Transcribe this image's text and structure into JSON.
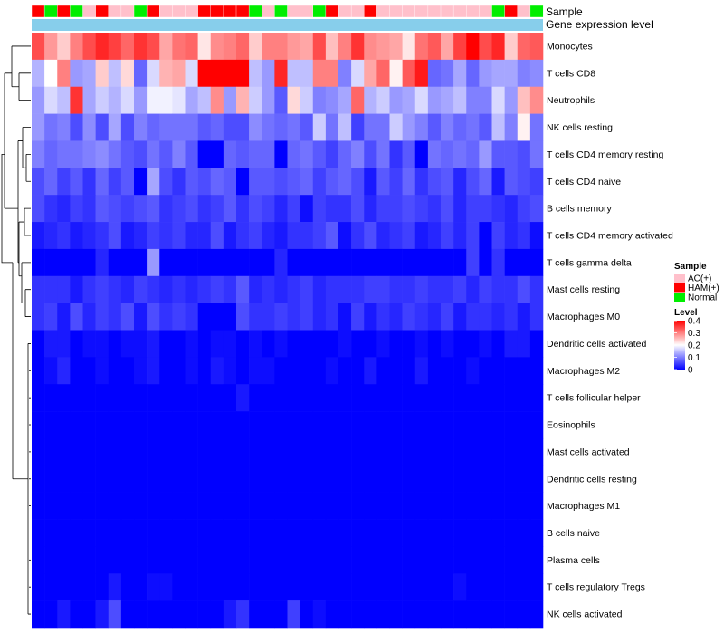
{
  "chart_data": {
    "type": "heatmap",
    "annotation_rows": [
      {
        "label": "Sample"
      },
      {
        "label": "Gene expression level"
      }
    ],
    "sample_groups": [
      "HAM(+)",
      "Normal",
      "HAM(+)",
      "Normal",
      "AC(+)",
      "HAM(+)",
      "AC(+)",
      "AC(+)",
      "Normal",
      "HAM(+)",
      "AC(+)",
      "AC(+)",
      "AC(+)",
      "HAM(+)",
      "HAM(+)",
      "HAM(+)",
      "HAM(+)",
      "Normal",
      "AC(+)",
      "Normal",
      "AC(+)",
      "AC(+)",
      "Normal",
      "HAM(+)",
      "AC(+)",
      "AC(+)",
      "HAM(+)",
      "AC(+)",
      "AC(+)",
      "AC(+)",
      "AC(+)",
      "AC(+)",
      "AC(+)",
      "AC(+)",
      "AC(+)",
      "AC(+)",
      "Normal",
      "HAM(+)",
      "AC(+)",
      "Normal"
    ],
    "rows": [
      {
        "name": "Monocytes",
        "values": [
          0.34,
          0.28,
          0.24,
          0.3,
          0.34,
          0.37,
          0.35,
          0.32,
          0.36,
          0.34,
          0.27,
          0.31,
          0.32,
          0.22,
          0.29,
          0.3,
          0.32,
          0.24,
          0.3,
          0.3,
          0.28,
          0.27,
          0.34,
          0.25,
          0.3,
          0.36,
          0.29,
          0.28,
          0.27,
          0.22,
          0.31,
          0.33,
          0.27,
          0.35,
          0.4,
          0.34,
          0.37,
          0.24,
          0.32,
          0.33
        ]
      },
      {
        "name": "T cells CD8",
        "values": [
          0.14,
          0.2,
          0.3,
          0.12,
          0.13,
          0.24,
          0.15,
          0.23,
          0.08,
          0.17,
          0.26,
          0.27,
          0.17,
          0.4,
          0.4,
          0.4,
          0.4,
          0.15,
          0.12,
          0.37,
          0.15,
          0.15,
          0.3,
          0.3,
          0.1,
          0.17,
          0.27,
          0.32,
          0.21,
          0.33,
          0.38,
          0.08,
          0.09,
          0.13,
          0.08,
          0.12,
          0.13,
          0.13,
          0.1,
          0.11
        ]
      },
      {
        "name": "Neutrophils",
        "values": [
          0.12,
          0.17,
          0.15,
          0.36,
          0.13,
          0.16,
          0.14,
          0.17,
          0.12,
          0.19,
          0.19,
          0.18,
          0.13,
          0.15,
          0.29,
          0.12,
          0.26,
          0.16,
          0.12,
          0.07,
          0.23,
          0.16,
          0.1,
          0.11,
          0.13,
          0.32,
          0.14,
          0.16,
          0.12,
          0.13,
          0.17,
          0.12,
          0.13,
          0.15,
          0.1,
          0.1,
          0.17,
          0.12,
          0.25,
          0.29
        ]
      },
      {
        "name": "NK cells resting",
        "values": [
          0.12,
          0.09,
          0.1,
          0.06,
          0.11,
          0.06,
          0.13,
          0.06,
          0.1,
          0.08,
          0.09,
          0.09,
          0.09,
          0.07,
          0.08,
          0.06,
          0.06,
          0.11,
          0.09,
          0.08,
          0.09,
          0.07,
          0.16,
          0.09,
          0.15,
          0.05,
          0.09,
          0.09,
          0.16,
          0.12,
          0.1,
          0.07,
          0.1,
          0.08,
          0.09,
          0.07,
          0.15,
          0.1,
          0.21,
          0.09
        ]
      },
      {
        "name": "T cells CD4 memory resting",
        "values": [
          0.1,
          0.08,
          0.09,
          0.09,
          0.1,
          0.11,
          0.09,
          0.07,
          0.06,
          0.09,
          0.07,
          0.1,
          0.07,
          0.0,
          0.0,
          0.08,
          0.07,
          0.08,
          0.08,
          0.0,
          0.08,
          0.09,
          0.07,
          0.05,
          0.08,
          0.1,
          0.06,
          0.09,
          0.04,
          0.07,
          0.0,
          0.09,
          0.08,
          0.09,
          0.08,
          0.12,
          0.07,
          0.07,
          0.06,
          0.09
        ]
      },
      {
        "name": "T cells CD4 naive",
        "values": [
          0.06,
          0.08,
          0.05,
          0.07,
          0.04,
          0.08,
          0.05,
          0.07,
          0.0,
          0.13,
          0.06,
          0.04,
          0.07,
          0.06,
          0.08,
          0.07,
          0.0,
          0.07,
          0.07,
          0.06,
          0.07,
          0.08,
          0.05,
          0.07,
          0.08,
          0.06,
          0.02,
          0.07,
          0.05,
          0.08,
          0.04,
          0.06,
          0.07,
          0.03,
          0.06,
          0.08,
          0.02,
          0.07,
          0.06,
          0.05
        ]
      },
      {
        "name": "B cells memory",
        "values": [
          0.06,
          0.04,
          0.03,
          0.05,
          0.04,
          0.07,
          0.06,
          0.05,
          0.06,
          0.07,
          0.04,
          0.05,
          0.06,
          0.04,
          0.05,
          0.07,
          0.04,
          0.06,
          0.05,
          0.03,
          0.05,
          0.01,
          0.05,
          0.04,
          0.04,
          0.06,
          0.03,
          0.05,
          0.05,
          0.06,
          0.05,
          0.04,
          0.06,
          0.03,
          0.05,
          0.05,
          0.04,
          0.03,
          0.05,
          0.06
        ]
      },
      {
        "name": "T cells CD4 memory activated",
        "values": [
          0.02,
          0.03,
          0.04,
          0.02,
          0.03,
          0.04,
          0.06,
          0.02,
          0.03,
          0.05,
          0.04,
          0.05,
          0.03,
          0.03,
          0.06,
          0.02,
          0.04,
          0.05,
          0.03,
          0.02,
          0.04,
          0.04,
          0.05,
          0.07,
          0.01,
          0.04,
          0.06,
          0.03,
          0.04,
          0.05,
          0.02,
          0.03,
          0.05,
          0.03,
          0.05,
          0.0,
          0.05,
          0.03,
          0.04,
          0.01
        ]
      },
      {
        "name": "T cells gamma delta",
        "values": [
          0,
          0,
          0,
          0,
          0,
          0.03,
          0,
          0,
          0,
          0.12,
          0,
          0,
          0,
          0,
          0,
          0,
          0,
          0,
          0,
          0.03,
          0,
          0,
          0,
          0,
          0,
          0,
          0,
          0,
          0,
          0,
          0,
          0,
          0,
          0,
          0.05,
          0,
          0.04,
          0,
          0,
          0
        ]
      },
      {
        "name": "Mast cells resting",
        "values": [
          0.04,
          0.04,
          0.04,
          0.02,
          0.04,
          0.05,
          0.04,
          0.03,
          0.05,
          0.04,
          0.03,
          0.04,
          0.03,
          0.04,
          0.05,
          0.04,
          0.07,
          0.03,
          0.04,
          0.03,
          0.04,
          0.05,
          0.03,
          0.04,
          0.04,
          0.04,
          0.05,
          0.05,
          0.04,
          0.04,
          0.05,
          0.04,
          0.04,
          0.05,
          0.03,
          0.05,
          0.04,
          0.04,
          0.06,
          0.04
        ]
      },
      {
        "name": "Macrophages M0",
        "values": [
          0.04,
          0.05,
          0.02,
          0.06,
          0.03,
          0.05,
          0.04,
          0.06,
          0.02,
          0.06,
          0.04,
          0.05,
          0.04,
          0.0,
          0.0,
          0.0,
          0.06,
          0.04,
          0.04,
          0.05,
          0.04,
          0.05,
          0.03,
          0.04,
          0.01,
          0.05,
          0.02,
          0.04,
          0.03,
          0.05,
          0.04,
          0.03,
          0.05,
          0.02,
          0.04,
          0.04,
          0.03,
          0.04,
          0.02,
          0.04
        ]
      },
      {
        "name": "Dendritic cells activated",
        "values": [
          0,
          0.02,
          0.02,
          0,
          0.01,
          0.01,
          0,
          0.01,
          0.01,
          0.02,
          0,
          0,
          0.01,
          0,
          0.01,
          0.01,
          0,
          0.01,
          0,
          0.01,
          0,
          0,
          0,
          0,
          0.01,
          0,
          0,
          0.01,
          0,
          0,
          0.01,
          0,
          0.01,
          0,
          0,
          0.01,
          0,
          0.02,
          0.02,
          0
        ]
      },
      {
        "name": "Macrophages M2",
        "values": [
          0,
          0.01,
          0.03,
          0,
          0,
          0.01,
          0,
          0,
          0.01,
          0.02,
          0,
          0,
          0.01,
          0,
          0.02,
          0.01,
          0,
          0.01,
          0.01,
          0,
          0,
          0,
          0,
          0.01,
          0,
          0,
          0.02,
          0,
          0,
          0,
          0.02,
          0,
          0,
          0,
          0.01,
          0,
          0,
          0,
          0,
          0
        ]
      },
      {
        "name": "T cells follicular helper",
        "values": [
          0,
          0,
          0,
          0,
          0,
          0,
          0,
          0,
          0,
          0,
          0,
          0,
          0,
          0,
          0,
          0,
          0.02,
          0,
          0,
          0,
          0,
          0,
          0,
          0,
          0,
          0,
          0,
          0,
          0,
          0,
          0,
          0,
          0,
          0,
          0,
          0,
          0,
          0,
          0,
          0
        ]
      },
      {
        "name": "Eosinophils",
        "values": [
          0,
          0,
          0,
          0,
          0,
          0,
          0,
          0,
          0,
          0,
          0,
          0,
          0,
          0,
          0,
          0,
          0,
          0,
          0,
          0,
          0,
          0,
          0,
          0,
          0,
          0,
          0,
          0,
          0,
          0,
          0,
          0,
          0,
          0,
          0,
          0,
          0,
          0,
          0,
          0
        ]
      },
      {
        "name": "Mast cells activated",
        "values": [
          0,
          0,
          0,
          0,
          0,
          0,
          0,
          0,
          0,
          0,
          0,
          0,
          0,
          0,
          0,
          0,
          0,
          0,
          0,
          0,
          0,
          0,
          0,
          0,
          0,
          0,
          0,
          0,
          0,
          0,
          0,
          0,
          0,
          0,
          0,
          0,
          0,
          0,
          0,
          0
        ]
      },
      {
        "name": "Dendritic cells resting",
        "values": [
          0,
          0,
          0,
          0,
          0,
          0,
          0,
          0,
          0,
          0,
          0,
          0,
          0,
          0,
          0,
          0,
          0,
          0,
          0,
          0,
          0,
          0,
          0,
          0,
          0,
          0,
          0,
          0,
          0,
          0,
          0,
          0,
          0,
          0,
          0,
          0,
          0,
          0,
          0,
          0
        ]
      },
      {
        "name": "Macrophages M1",
        "values": [
          0,
          0,
          0,
          0,
          0,
          0,
          0,
          0,
          0,
          0,
          0,
          0,
          0,
          0,
          0,
          0,
          0,
          0,
          0,
          0,
          0,
          0,
          0,
          0,
          0,
          0,
          0,
          0,
          0,
          0,
          0,
          0,
          0,
          0,
          0,
          0,
          0,
          0,
          0,
          0
        ]
      },
      {
        "name": "B cells naive",
        "values": [
          0,
          0,
          0,
          0,
          0,
          0,
          0,
          0,
          0,
          0,
          0,
          0,
          0,
          0,
          0,
          0,
          0,
          0,
          0,
          0,
          0,
          0,
          0,
          0,
          0,
          0,
          0,
          0,
          0,
          0,
          0,
          0,
          0,
          0,
          0,
          0,
          0,
          0,
          0,
          0
        ]
      },
      {
        "name": "Plasma cells",
        "values": [
          0,
          0,
          0,
          0,
          0,
          0,
          0,
          0,
          0,
          0,
          0,
          0,
          0,
          0,
          0,
          0,
          0,
          0,
          0,
          0,
          0,
          0,
          0,
          0,
          0,
          0,
          0,
          0,
          0,
          0,
          0,
          0,
          0,
          0,
          0,
          0,
          0,
          0,
          0,
          0
        ]
      },
      {
        "name": "T cells regulatory  Tregs",
        "values": [
          0,
          0,
          0,
          0,
          0,
          0,
          0.02,
          0,
          0,
          0.01,
          0.01,
          0,
          0,
          0,
          0,
          0,
          0,
          0,
          0,
          0,
          0,
          0,
          0,
          0,
          0,
          0,
          0,
          0,
          0,
          0,
          0,
          0,
          0,
          0.01,
          0,
          0,
          0,
          0,
          0,
          0
        ]
      },
      {
        "name": "NK cells activated",
        "values": [
          0,
          0,
          0.02,
          0,
          0,
          0.02,
          0.06,
          0,
          0,
          0,
          0,
          0,
          0,
          0,
          0,
          0.02,
          0.04,
          0,
          0,
          0,
          0.05,
          0,
          0.01,
          0,
          0,
          0,
          0,
          0,
          0,
          0,
          0,
          0,
          0,
          0,
          0,
          0,
          0,
          0,
          0,
          0
        ]
      }
    ],
    "legends": {
      "sample": {
        "title": "Sample",
        "items": [
          {
            "label": "AC(+)",
            "color": "#ffc0cb"
          },
          {
            "label": "HAM(+)",
            "color": "#ff0000"
          },
          {
            "label": "Normal",
            "color": "#00ee00"
          }
        ]
      },
      "level": {
        "title": "Level",
        "ticks": [
          "0.4",
          "0.3",
          "0.2",
          "0.1",
          "0"
        ],
        "tick_values": [
          0.4,
          0.3,
          0.2,
          0.1,
          0
        ],
        "range": [
          0,
          0.4
        ],
        "colors": {
          "low": "#0000ff",
          "mid": "#ffffff",
          "high": "#ff0000"
        },
        "mid_value": 0.2
      }
    },
    "expression_bar_color": "#87ceeb"
  }
}
